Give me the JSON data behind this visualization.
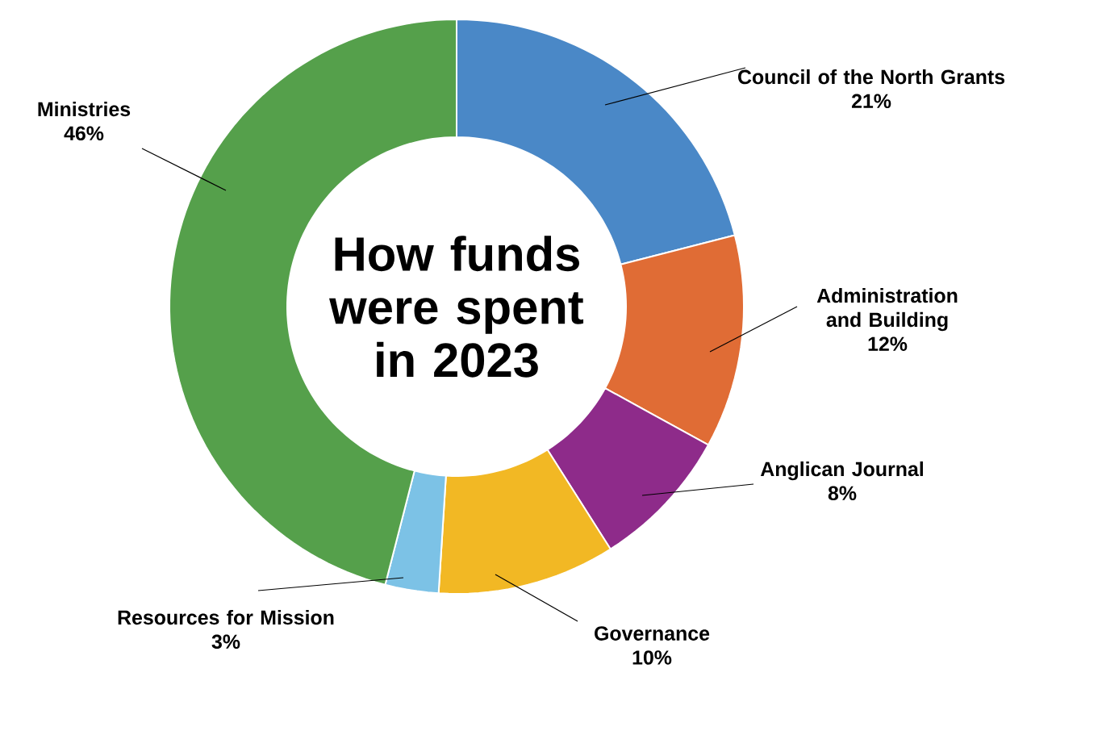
{
  "chart_data": {
    "type": "donut",
    "title": "How funds were spent in 2023",
    "categories": [
      "Council of the North Grants",
      "Administration and Building",
      "Anglican Journal",
      "Governance",
      "Resources for Mission",
      "Ministries"
    ],
    "values": [
      21,
      12,
      8,
      10,
      3,
      46
    ],
    "value_labels": [
      "21%",
      "12%",
      "8%",
      "10%",
      "3%",
      "46%"
    ],
    "colors": [
      "#4a88c7",
      "#e06c35",
      "#8e2b8a",
      "#f2b824",
      "#7cc2e6",
      "#55a04b"
    ]
  }
}
